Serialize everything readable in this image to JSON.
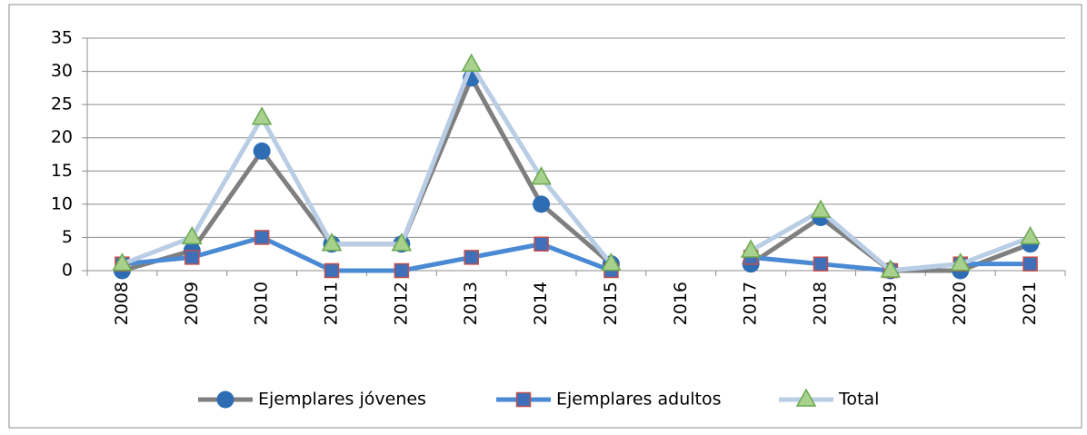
{
  "chart_data": {
    "type": "line",
    "categories": [
      "2008",
      "2009",
      "2010",
      "2011",
      "2012",
      "2013",
      "2014",
      "2015",
      "2016",
      "2017",
      "2018",
      "2019",
      "2020",
      "2021"
    ],
    "series": [
      {
        "name": "Ejemplares jóvenes",
        "color": "#7f7f7f",
        "marker": "circle",
        "marker_color": "#2e6db4",
        "values": [
          0,
          3,
          18,
          4,
          4,
          29,
          10,
          1,
          null,
          1,
          8,
          0,
          0,
          4
        ]
      },
      {
        "name": "Ejemplares adultos",
        "color": "#4a8ad4",
        "marker": "square",
        "marker_color": "#3f6fb8",
        "values": [
          1,
          2,
          5,
          0,
          0,
          2,
          4,
          0,
          null,
          2,
          1,
          0,
          1,
          1
        ]
      },
      {
        "name": "Total",
        "color": "#b9cde5",
        "marker": "triangle",
        "marker_color": "#a9d18e",
        "values": [
          1,
          5,
          23,
          4,
          4,
          31,
          14,
          1,
          null,
          3,
          9,
          0,
          1,
          5
        ]
      }
    ],
    "ylim": [
      0,
      35
    ],
    "yticks": [
      0,
      5,
      10,
      15,
      20,
      25,
      30,
      35
    ],
    "grid": true,
    "legend": "bottom"
  }
}
